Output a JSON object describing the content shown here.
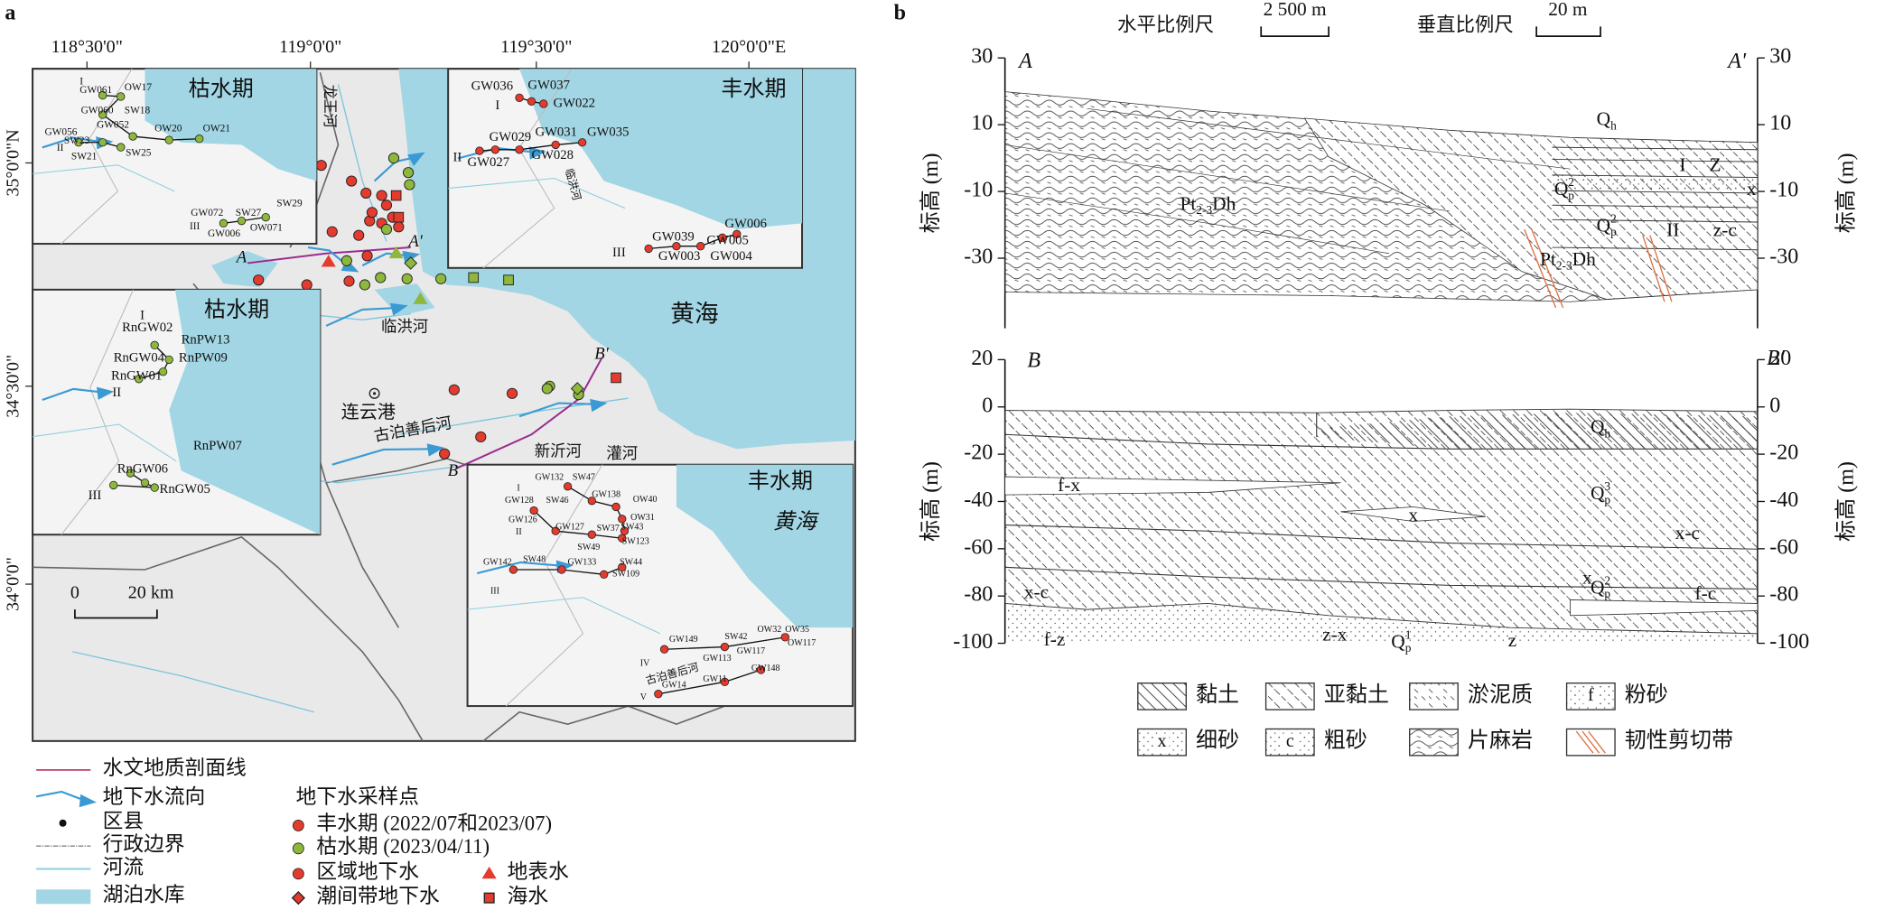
{
  "panel_a": {
    "label": "a",
    "lon_labels": [
      "118°30'0\"",
      "119°0'0\"",
      "119°30'0\"",
      "120°0'0\"E"
    ],
    "lat_labels": [
      "35°0'0\"N",
      "34°30'0\"",
      "34°0'0\""
    ],
    "places": [
      "黄海",
      "连云港",
      "临洪河",
      "古泊善后河",
      "新沂河",
      "灌河",
      "龙王河"
    ],
    "section_ends": [
      "A",
      "A'",
      "B",
      "B'"
    ],
    "scale_bar": [
      "0",
      "20 km"
    ],
    "insets": [
      {
        "title": "枯水期",
        "labels": [
          "I",
          "GW061",
          "OW17",
          "GW060",
          "SW18",
          "GW052",
          "OW20",
          "OW21",
          "GW056",
          "SW23",
          "II",
          "SW25",
          "SW21",
          "GW072",
          "SW27",
          "SW29",
          "III",
          "GW006",
          "OW071"
        ]
      },
      {
        "title": "枯水期",
        "labels": [
          "I",
          "RnGW02",
          "RnPW13",
          "RnGW04",
          "RnPW09",
          "RnGW01",
          "II",
          "RnPW07",
          "RnGW06",
          "III",
          "RnGW05"
        ]
      },
      {
        "title": "丰水期",
        "labels": [
          "GW036",
          "GW037",
          "GW022",
          "I",
          "GW029",
          "GW031",
          "GW035",
          "II",
          "GW027",
          "GW028",
          "GW039",
          "GW006",
          "GW005",
          "III",
          "GW003",
          "GW004",
          "临洪河"
        ]
      },
      {
        "title": "丰水期",
        "sea": "黄海",
        "labels": [
          "I",
          "GW132",
          "SW47",
          "GW128",
          "SW46",
          "GW138",
          "OW40",
          "OW31",
          "GW126",
          "II",
          "GW127",
          "SW37",
          "SW43",
          "SW123",
          "SW49",
          "SW44",
          "GW142",
          "SW48",
          "GW133",
          "SW109",
          "III",
          "GW149",
          "SW42",
          "OW32",
          "OW35",
          "GW113",
          "GW117",
          "OW117",
          "IV",
          "GW148",
          "GW11",
          "GW14",
          "V",
          "古泊善后河"
        ]
      }
    ],
    "legend": {
      "items": [
        "水文地质剖面线",
        "地下水流向",
        "区县",
        "行政边界",
        "河流",
        "湖泊水库"
      ],
      "sampling_title": "地下水采样点",
      "sampling": [
        "丰水期 (2022/07和2023/07)",
        "枯水期 (2023/04/11)",
        "区域地下水",
        "地表水",
        "潮间带地下水",
        "海水"
      ]
    }
  },
  "panel_b": {
    "label": "b",
    "scale": [
      "水平比例尺",
      "2 500 m",
      "垂直比例尺",
      "20 m"
    ],
    "ylabel": "标高 (m)",
    "sections": [
      {
        "ends": [
          "A",
          "A'"
        ],
        "ylim": [
          -51,
          30
        ],
        "yticks": [
          30,
          10,
          -10,
          -30
        ],
        "strata": [
          {
            "main": "Q",
            "sub": "h"
          },
          {
            "main": "I"
          },
          {
            "main": "Z"
          },
          {
            "main": "Q",
            "sub": "p",
            "sup": "2"
          },
          {
            "main": "x"
          },
          {
            "main": "Pt",
            "sub": "2-3",
            "tail": "Dh"
          },
          {
            "main": "Q",
            "sub": "p",
            "sup": "2"
          },
          {
            "main": "II"
          },
          {
            "main": "z-c"
          },
          {
            "main": "Pt",
            "sub": "2-3",
            "tail": "Dh"
          }
        ]
      },
      {
        "ends": [
          "B",
          "B'"
        ],
        "ylim": [
          -100,
          20
        ],
        "yticks": [
          20,
          0,
          -20,
          -40,
          -60,
          -80,
          -100
        ],
        "strata": [
          {
            "main": "Q",
            "sub": "h"
          },
          {
            "main": "f-x"
          },
          {
            "main": "Q",
            "sub": "p",
            "sup": "3"
          },
          {
            "main": "x"
          },
          {
            "main": "x-c"
          },
          {
            "main": "x"
          },
          {
            "main": "Q",
            "sub": "p",
            "sup": "2"
          },
          {
            "main": "f-c"
          },
          {
            "main": "x-c"
          },
          {
            "main": "f-z"
          },
          {
            "main": "z-x"
          },
          {
            "main": "Q",
            "sub": "p",
            "sup": "1"
          },
          {
            "main": "z"
          }
        ]
      }
    ],
    "lithology": [
      {
        "name": "黏土"
      },
      {
        "name": "亚黏土"
      },
      {
        "name": "淤泥质"
      },
      {
        "name": "粉砂",
        "symbol": "f"
      },
      {
        "name": "细砂",
        "symbol": "x"
      },
      {
        "name": "粗砂",
        "symbol": "c"
      },
      {
        "name": "片麻岩"
      },
      {
        "name": "韧性剪切带"
      }
    ]
  }
}
